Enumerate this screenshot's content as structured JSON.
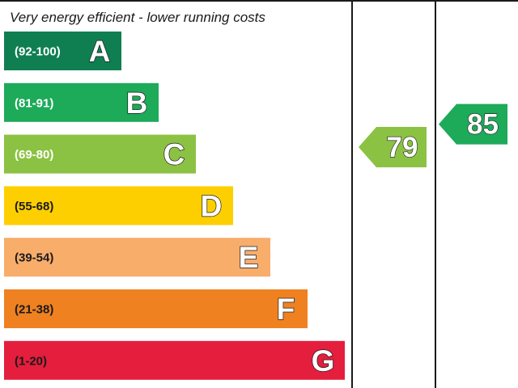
{
  "chart_data": {
    "type": "bar",
    "title": "Very energy efficient - lower running costs",
    "bands": [
      {
        "range": "(92-100)",
        "letter": "A",
        "color": "#0f7f52"
      },
      {
        "range": "(81-91)",
        "letter": "B",
        "color": "#1daa59"
      },
      {
        "range": "(69-80)",
        "letter": "C",
        "color": "#8cc243"
      },
      {
        "range": "(55-68)",
        "letter": "D",
        "color": "#fecf00"
      },
      {
        "range": "(39-54)",
        "letter": "E",
        "color": "#f8ad6b"
      },
      {
        "range": "(21-38)",
        "letter": "F",
        "color": "#ef8121"
      },
      {
        "range": "(1-20)",
        "letter": "G",
        "color": "#e41e3c"
      }
    ],
    "ratings": [
      {
        "value": 79,
        "band": "C",
        "column": "current",
        "color": "#8cc243"
      },
      {
        "value": 85,
        "band": "B",
        "column": "potential",
        "color": "#1daa59"
      }
    ]
  }
}
